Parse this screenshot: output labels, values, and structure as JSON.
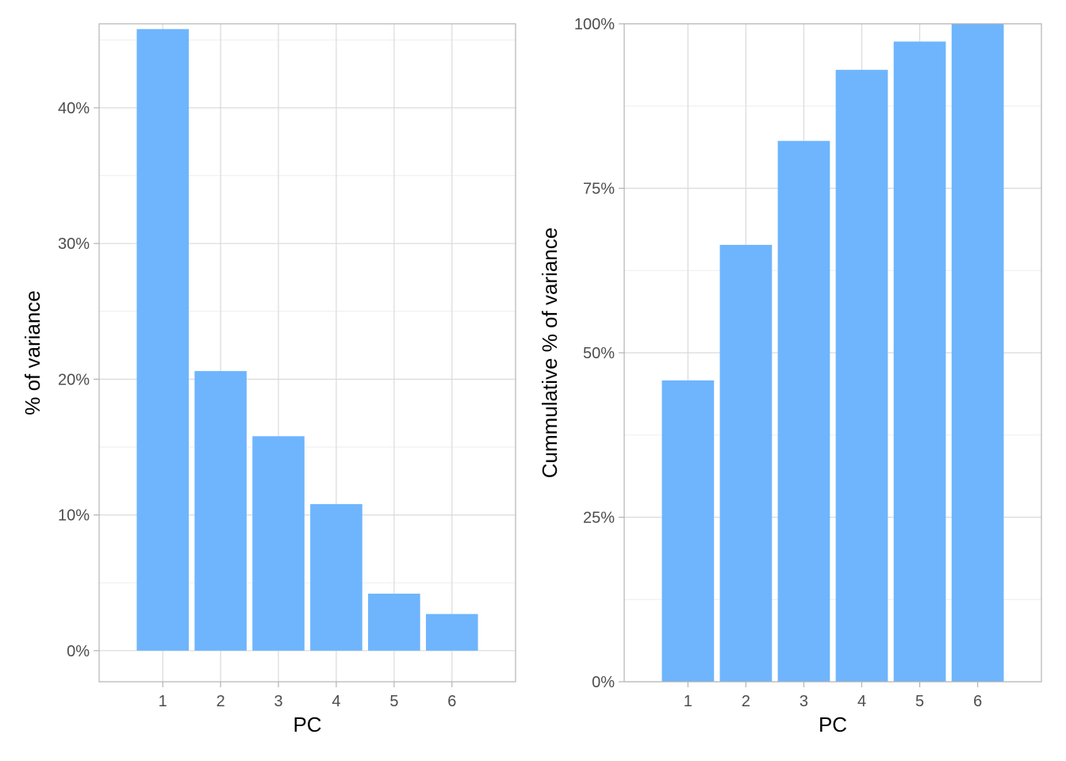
{
  "colors": {
    "bar": "#6eb5fd",
    "panel_border": "#b3b3b3",
    "grid_major": "#dadada",
    "grid_minor": "#eeeeee",
    "tick_text": "#4d4d4d",
    "axis_title": "#000000"
  },
  "chart_data": [
    {
      "type": "bar",
      "categories": [
        "1",
        "2",
        "3",
        "4",
        "5",
        "6"
      ],
      "values": [
        45.8,
        20.6,
        15.8,
        10.8,
        4.2,
        2.7
      ],
      "title": "",
      "xlabel": "PC",
      "ylabel": "% of variance",
      "ylim": [
        -2.29,
        46.19
      ],
      "yticks": [
        0,
        10,
        20,
        30,
        40
      ],
      "ytick_labels": [
        "0%",
        "10%",
        "20%",
        "30%",
        "40%"
      ],
      "grid": true
    },
    {
      "type": "bar",
      "categories": [
        "1",
        "2",
        "3",
        "4",
        "5",
        "6"
      ],
      "values": [
        45.8,
        66.4,
        82.2,
        93.0,
        97.3,
        100.0
      ],
      "title": "",
      "xlabel": "PC",
      "ylabel": "Cummulative % of variance",
      "ylim": [
        0,
        100
      ],
      "yticks": [
        0,
        25,
        50,
        75,
        100
      ],
      "ytick_labels": [
        "0%",
        "25%",
        "50%",
        "75%",
        "100%"
      ],
      "grid": true
    }
  ]
}
